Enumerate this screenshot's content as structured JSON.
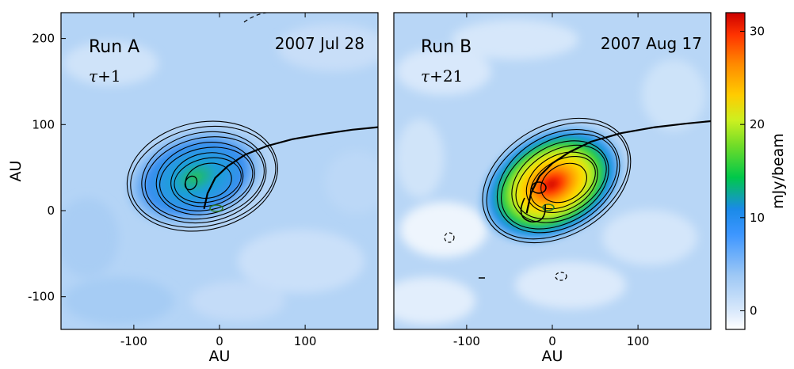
{
  "chart_data": [
    {
      "type": "heatmap",
      "panel": "left",
      "title": "Run A",
      "date_label": "2007 Jul 28",
      "epoch_label": {
        "symbol": "τ",
        "offset": "+1"
      },
      "xlabel": "AU",
      "ylabel": "AU",
      "xlim": [
        -185,
        185
      ],
      "ylim": [
        -138,
        230
      ],
      "xticks": [
        -100,
        0,
        100
      ],
      "xtick_labels": [
        "-100",
        "0",
        "100"
      ],
      "yticks": [
        -100,
        0,
        100,
        200
      ],
      "ytick_labels": [
        "-100",
        "0",
        "100",
        "200"
      ],
      "emission_peak": {
        "x": -30,
        "y": 30,
        "value_mJy_per_beam": 10
      },
      "contour_center": {
        "x": -20,
        "y": 40
      },
      "contour_levels": 9,
      "orbit_track": {
        "x": [
          -18,
          -14,
          -5,
          10,
          30,
          55,
          85,
          120,
          155,
          185
        ],
        "y": [
          2,
          20,
          38,
          52,
          65,
          75,
          83,
          89,
          94,
          97
        ]
      },
      "negative_contours": [
        {
          "x": 40,
          "y": 225
        }
      ]
    },
    {
      "type": "heatmap",
      "panel": "right",
      "title": "Run B",
      "date_label": "2007 Aug 17",
      "epoch_label": {
        "symbol": "τ",
        "offset": "+21"
      },
      "xlabel": "AU",
      "xlim": [
        -185,
        185
      ],
      "ylim": [
        -138,
        230
      ],
      "xticks": [
        -100,
        0,
        100
      ],
      "xtick_labels": [
        "-100",
        "0",
        "100"
      ],
      "emission_peak": {
        "x": -15,
        "y": 27,
        "value_mJy_per_beam": 31
      },
      "contour_center": {
        "x": 5,
        "y": 35
      },
      "contour_levels": 9,
      "orbit_track": {
        "x": [
          -30,
          -25,
          -15,
          0,
          20,
          45,
          80,
          120,
          155,
          185
        ],
        "y": [
          -3,
          20,
          40,
          55,
          68,
          80,
          90,
          97,
          101,
          104
        ]
      },
      "negative_contours": [
        {
          "x": -120,
          "y": -32
        },
        {
          "x": 12,
          "y": -77
        },
        {
          "x": -82,
          "y": -78
        }
      ]
    }
  ],
  "colorbar": {
    "label": "mJy/beam",
    "range": [
      -2,
      32
    ],
    "ticks": [
      0,
      10,
      20,
      30
    ],
    "tick_labels": [
      "0",
      "10",
      "20",
      "30"
    ],
    "colors": [
      "#ffffff",
      "#b8d8f8",
      "#1e88ff",
      "#00cc44",
      "#ccf020",
      "#ffaa00",
      "#ff4400",
      "#cc0000"
    ]
  }
}
